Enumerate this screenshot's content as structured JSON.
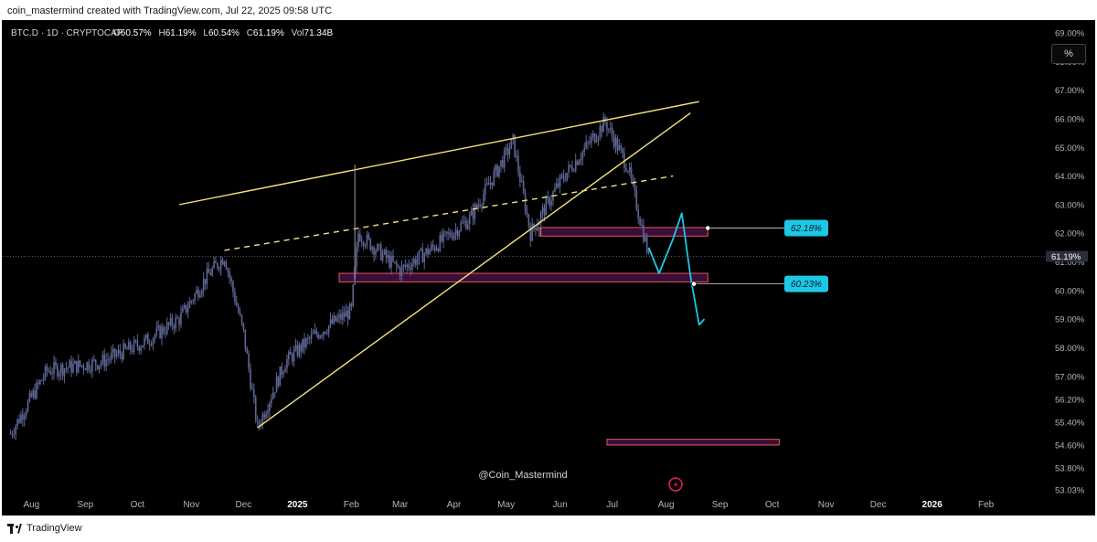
{
  "header": {
    "attribution": "coin_mastermind created with TradingView.com, Jul 22, 2025 09:58 UTC"
  },
  "legend": {
    "symbol": "BTC.D · 1D · CRYPTOCAP",
    "open_label": "O",
    "open_value": "60.57%",
    "high_label": "H",
    "high_value": "61.19%",
    "low_label": "L",
    "low_value": "60.54%",
    "close_label": "C",
    "close_value": "61.19%",
    "vol_label": "Vol",
    "vol_value": "71.34B"
  },
  "scale_button": "%",
  "watermark": "@Coin_Mastermind",
  "footer": {
    "brand": "TradingView"
  },
  "colors": {
    "background": "#000000",
    "candle": "#5e6694",
    "trendline": "#f7e27a",
    "projection": "#1ec7e6",
    "zone_border": "#e05a5a",
    "zone_fill": "#3b0e3a",
    "label_bg": "#1ec7e6"
  },
  "chart_data": {
    "type": "candlestick",
    "symbol": "BTC.D",
    "interval": "1D",
    "xlabel": "",
    "ylabel": "",
    "ylim": [
      53.0,
      69.0
    ],
    "y_ticks": [
      "53.03%",
      "53.80%",
      "54.60%",
      "55.40%",
      "56.20%",
      "57.00%",
      "58.00%",
      "59.00%",
      "60.00%",
      "61.00%",
      "62.00%",
      "63.00%",
      "64.00%",
      "65.00%",
      "66.00%",
      "67.00%",
      "68.00%",
      "69.00%"
    ],
    "x_ticks": [
      "Aug",
      "Sep",
      "Oct",
      "Nov",
      "Dec",
      "2025",
      "Feb",
      "Mar",
      "Apr",
      "May",
      "Jun",
      "Jul",
      "Aug",
      "Sep",
      "Oct",
      "Nov",
      "Dec",
      "2026",
      "Feb"
    ],
    "bold_x_ticks": [
      "2025",
      "2026"
    ],
    "current_price_label": "61.19%",
    "current_price": 61.19,
    "price_path_approx": [
      {
        "date": "2024-07-20",
        "price": 55.0
      },
      {
        "date": "2024-08-10",
        "price": 57.2
      },
      {
        "date": "2024-09-10",
        "price": 57.5
      },
      {
        "date": "2024-10-05",
        "price": 58.2
      },
      {
        "date": "2024-10-25",
        "price": 59.0
      },
      {
        "date": "2024-11-10",
        "price": 60.5
      },
      {
        "date": "2024-11-20",
        "price": 61.2
      },
      {
        "date": "2024-12-01",
        "price": 58.5
      },
      {
        "date": "2024-12-09",
        "price": 55.2
      },
      {
        "date": "2024-12-25",
        "price": 57.5
      },
      {
        "date": "2025-01-10",
        "price": 58.4
      },
      {
        "date": "2025-02-01",
        "price": 59.3
      },
      {
        "date": "2025-02-05",
        "price": 62.0
      },
      {
        "date": "2025-03-01",
        "price": 60.7
      },
      {
        "date": "2025-03-20",
        "price": 61.5
      },
      {
        "date": "2025-04-10",
        "price": 62.5
      },
      {
        "date": "2025-05-05",
        "price": 65.2
      },
      {
        "date": "2025-05-15",
        "price": 62.0
      },
      {
        "date": "2025-06-01",
        "price": 63.8
      },
      {
        "date": "2025-06-27",
        "price": 65.9
      },
      {
        "date": "2025-07-10",
        "price": 64.3
      },
      {
        "date": "2025-07-22",
        "price": 61.2
      }
    ],
    "projection_path_approx": [
      {
        "date": "2025-07-22",
        "price": 61.5
      },
      {
        "date": "2025-07-28",
        "price": 60.6
      },
      {
        "date": "2025-08-05",
        "price": 61.8
      },
      {
        "date": "2025-08-10",
        "price": 62.7
      },
      {
        "date": "2025-08-15",
        "price": 60.5
      },
      {
        "date": "2025-08-20",
        "price": 58.8
      },
      {
        "date": "2025-08-23",
        "price": 59.0
      }
    ],
    "price_labels": [
      {
        "label": "62.18%",
        "price": 62.18
      },
      {
        "label": "60.23%",
        "price": 60.23
      }
    ],
    "zones": [
      {
        "start": "2025-05-20",
        "end": "2025-08-25",
        "top": 62.2,
        "bottom": 61.9
      },
      {
        "start": "2025-01-25",
        "end": "2025-08-25",
        "top": 60.6,
        "bottom": 60.3
      },
      {
        "start": "2025-06-28",
        "end": "2025-10-05",
        "top": 54.8,
        "bottom": 54.6
      }
    ],
    "trendlines": [
      {
        "style": "solid",
        "start": {
          "date": "2024-10-25",
          "price": 63.0
        },
        "end": {
          "date": "2025-08-20",
          "price": 66.6
        }
      },
      {
        "style": "dashed",
        "start": {
          "date": "2024-11-20",
          "price": 61.4
        },
        "end": {
          "date": "2025-08-05",
          "price": 64.0
        }
      },
      {
        "style": "solid",
        "start": {
          "date": "2024-12-09",
          "price": 55.2
        },
        "end": {
          "date": "2025-08-15",
          "price": 66.2
        }
      }
    ]
  }
}
